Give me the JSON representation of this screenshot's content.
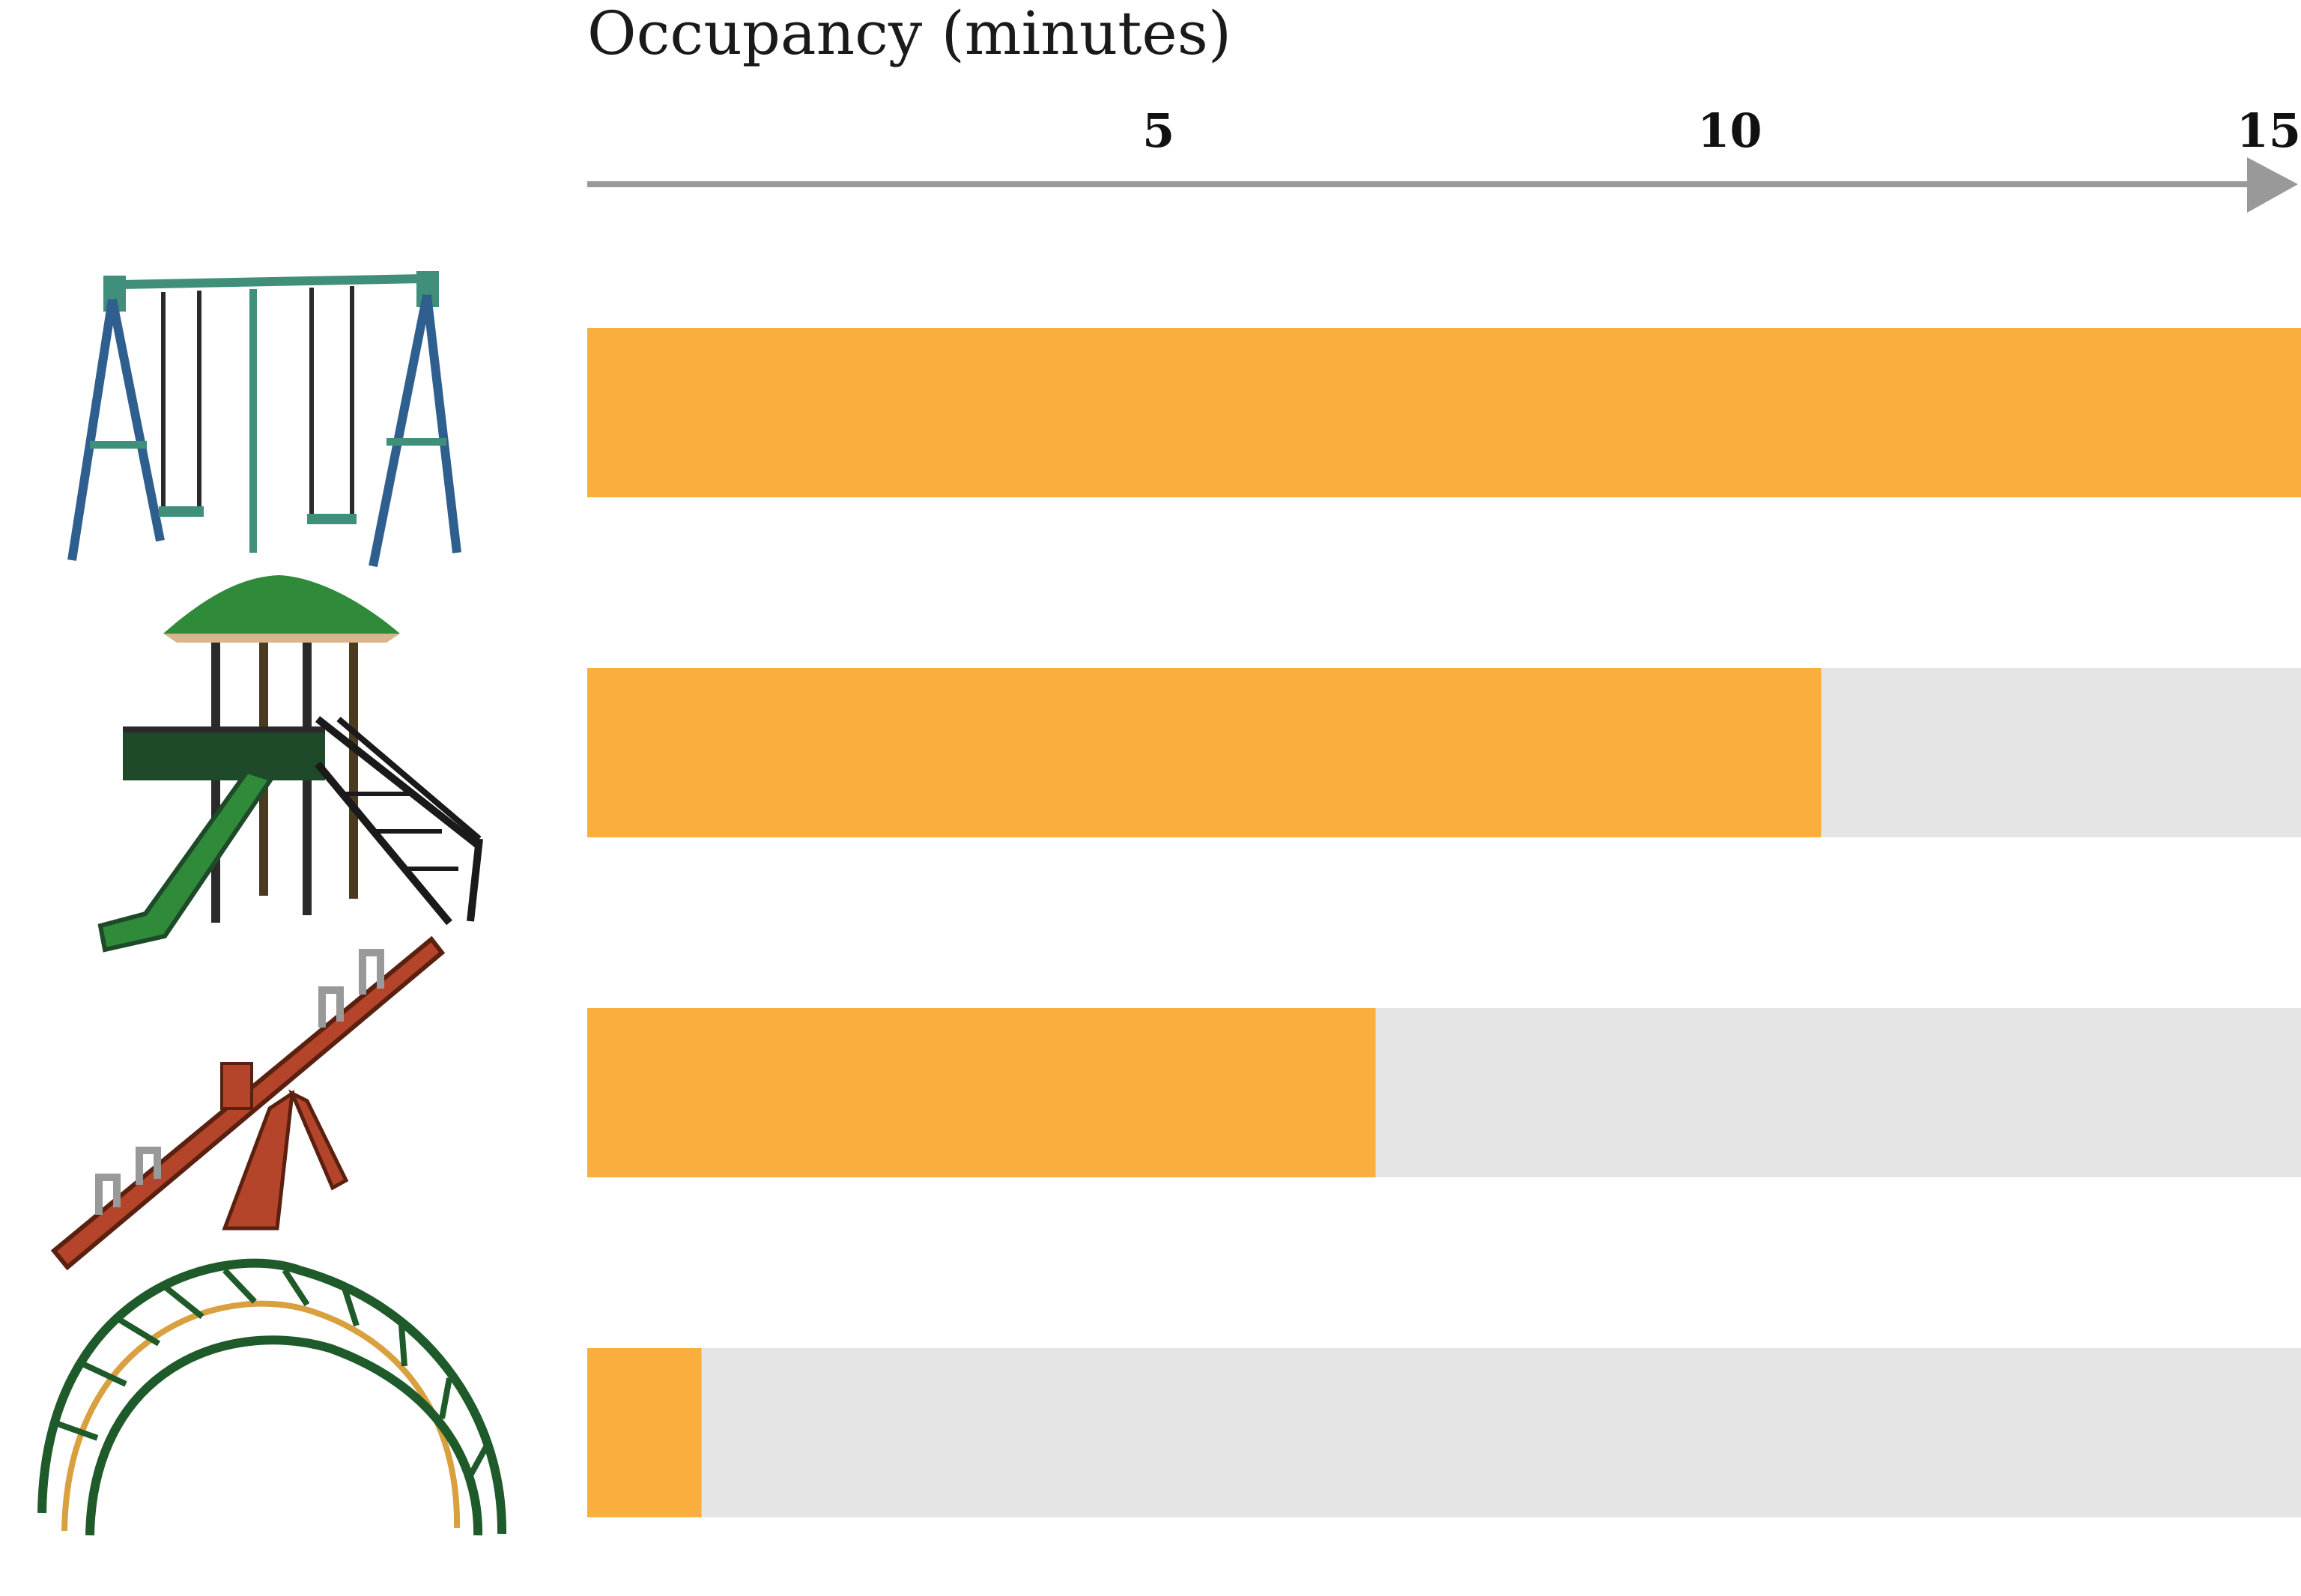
{
  "chart_data": {
    "type": "bar",
    "orientation": "horizontal",
    "xlabel": "Occupancy (minutes)",
    "xlim": [
      0,
      15
    ],
    "ticks": [
      {
        "value": 5,
        "label": "5"
      },
      {
        "value": 10,
        "label": "10"
      },
      {
        "value": 15,
        "label": "15"
      }
    ],
    "categories": [
      "swing set",
      "play structure with slide",
      "seesaw",
      "climbing arch"
    ],
    "values": [
      15,
      10.8,
      6.9,
      1.0
    ],
    "grid": false,
    "legend": "none"
  },
  "colors": {
    "bar": "#F9AE3D",
    "track": "#E5E5E5",
    "axis": "#999999"
  },
  "icons": [
    "swing-set-icon",
    "play-structure-icon",
    "seesaw-icon",
    "climbing-arch-icon"
  ]
}
